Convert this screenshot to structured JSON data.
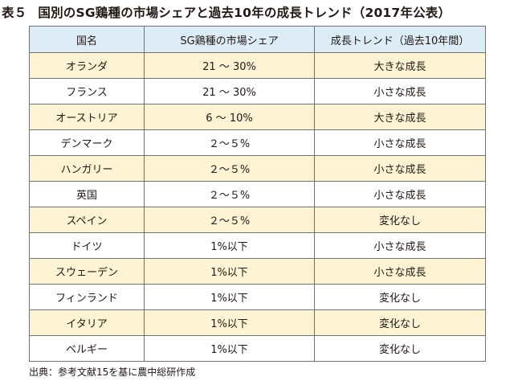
{
  "title": {
    "label": "表５",
    "text": "国別のSG鶏種の市場シェアと過去10年の成長トレンド（2017年公表）"
  },
  "table": {
    "headers": [
      "国名",
      "SG鶏種の市場シェア",
      "成長トレンド（過去10年間）"
    ],
    "rows": [
      [
        "オランダ",
        "21 ～ 30%",
        "大きな成長"
      ],
      [
        "フランス",
        "21 ～ 30%",
        "小さな成長"
      ],
      [
        "オーストリア",
        "6 ～ 10%",
        "大きな成長"
      ],
      [
        "デンマーク",
        "２～５%",
        "小さな成長"
      ],
      [
        "ハンガリー",
        "２～５%",
        "小さな成長"
      ],
      [
        "英国",
        "２～５%",
        "小さな成長"
      ],
      [
        "スペイン",
        "２～５%",
        "変化なし"
      ],
      [
        "ドイツ",
        "1%以下",
        "小さな成長"
      ],
      [
        "スウェーデン",
        "1%以下",
        "小さな成長"
      ],
      [
        "フィンランド",
        "1%以下",
        "変化なし"
      ],
      [
        "イタリア",
        "1%以下",
        "変化なし"
      ],
      [
        "ベルギー",
        "1%以下",
        "変化なし"
      ]
    ]
  },
  "source": "出典：参考文献15を基に農中総研作成",
  "colors": {
    "header_bg": "#dcedf8",
    "stripe_bg": "#fdf4d3",
    "border": "#6f6f6f",
    "text": "#231815"
  }
}
